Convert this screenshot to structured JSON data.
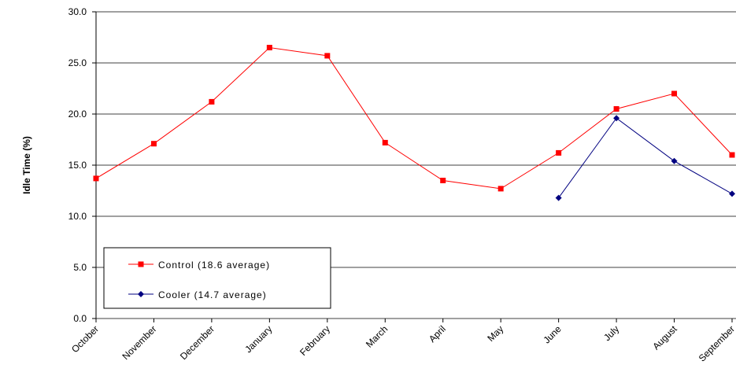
{
  "chart_data": {
    "type": "line",
    "y_label": "Idle Time (%)",
    "categories": [
      "October",
      "November",
      "December",
      "January",
      "February",
      "March",
      "April",
      "May",
      "June",
      "July",
      "August",
      "September"
    ],
    "series": [
      {
        "name": "Control (18.6 average)",
        "color": "#ff0000",
        "marker": "square",
        "values": [
          13.7,
          17.1,
          21.2,
          26.5,
          25.7,
          17.2,
          13.5,
          12.7,
          16.2,
          20.5,
          22.0,
          16.0
        ]
      },
      {
        "name": "Cooler (14.7 average)",
        "color": "#000080",
        "marker": "diamond",
        "values": [
          null,
          null,
          null,
          null,
          null,
          null,
          null,
          null,
          11.8,
          19.6,
          15.4,
          12.2
        ]
      }
    ],
    "ylim": [
      0,
      30
    ],
    "yticks": [
      {
        "value": 0,
        "label": "0.0"
      },
      {
        "value": 5,
        "label": "5.0"
      },
      {
        "value": 10,
        "label": "10.0"
      },
      {
        "value": 15,
        "label": "15.0"
      },
      {
        "value": 20,
        "label": "20.0"
      },
      {
        "value": 25,
        "label": "25.0"
      },
      {
        "value": 30,
        "label": "30.0"
      }
    ],
    "grid": true
  }
}
